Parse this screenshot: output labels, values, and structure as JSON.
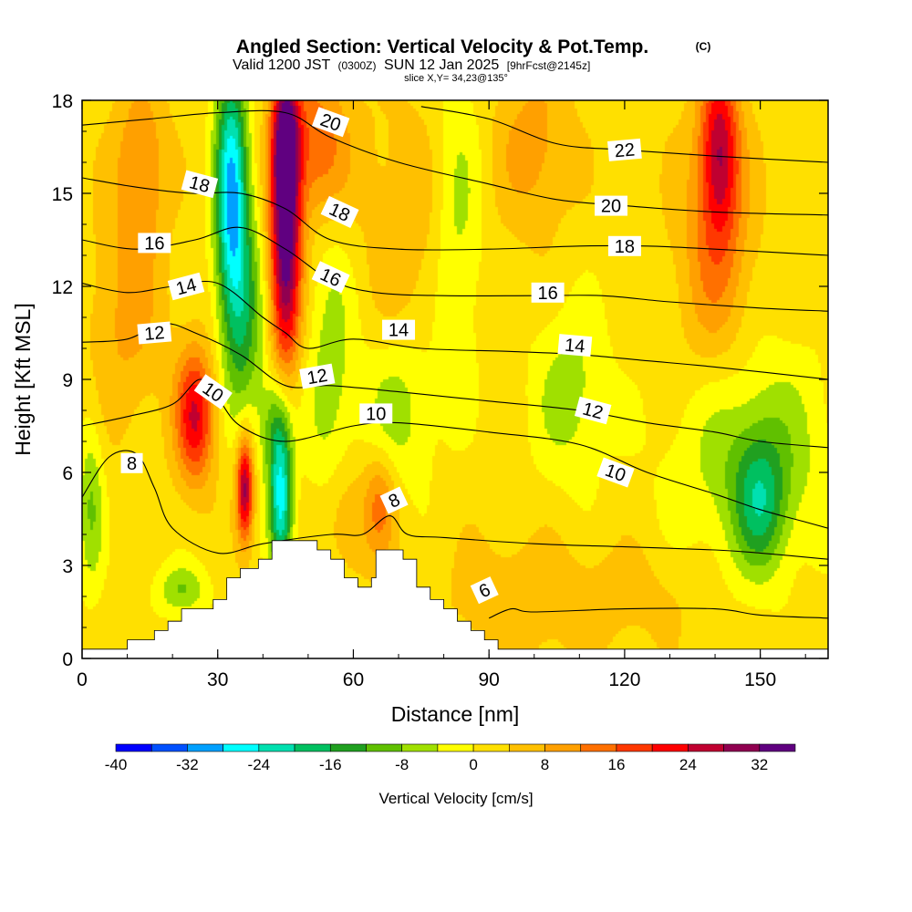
{
  "title": {
    "main": "Angled Section: Vertical Velocity & Pot.Temp.",
    "copyright": "(C)",
    "valid_prefix": "Valid 1200 JST",
    "valid_zulu": "(0300Z)",
    "valid_date": "SUN 12 Jan 2025",
    "forecast": "[9hrFcst@2145z]",
    "slice": "slice X,Y= 34,23@135°"
  },
  "chart_data": {
    "type": "heatmap",
    "xlabel": "Distance [nm]",
    "ylabel": "Height [Kft MSL]",
    "xlim": [
      0,
      165
    ],
    "ylim": [
      0,
      18
    ],
    "x_ticks": [
      0,
      30,
      60,
      90,
      120,
      150
    ],
    "y_ticks": [
      0,
      3,
      6,
      9,
      12,
      15,
      18
    ],
    "colorbar": {
      "title": "Vertical Velocity [cm/s]",
      "min": -40,
      "max": 36,
      "step": 4,
      "tick_labels": [
        -40,
        -32,
        -24,
        -16,
        -8,
        0,
        8,
        16,
        24,
        32
      ],
      "colors": [
        "#0000ff",
        "#0050ff",
        "#00a0ff",
        "#00ffff",
        "#00e0b0",
        "#00c060",
        "#20a020",
        "#60c000",
        "#a0e000",
        "#ffff00",
        "#ffe000",
        "#ffc000",
        "#ffa000",
        "#ff7000",
        "#ff3800",
        "#ff0000",
        "#c00030",
        "#900050",
        "#600080"
      ]
    },
    "vertical_velocity_features": [
      {
        "x": 33,
        "y": 15.0,
        "value": -30,
        "sx": 2.5,
        "sy": 3.0
      },
      {
        "x": 36,
        "y": 11.0,
        "value": -14,
        "sx": 3.0,
        "sy": 2.5
      },
      {
        "x": 43,
        "y": 7.5,
        "value": -14,
        "sx": 2.5,
        "sy": 1.3
      },
      {
        "x": 44,
        "y": 5.0,
        "value": -26,
        "sx": 1.8,
        "sy": 1.6
      },
      {
        "x": 45,
        "y": 13.5,
        "value": 34,
        "sx": 2.4,
        "sy": 3.0
      },
      {
        "x": 45,
        "y": 17.0,
        "value": 20,
        "sx": 2.0,
        "sy": 1.5
      },
      {
        "x": 52,
        "y": 16.5,
        "value": 14,
        "sx": 5.0,
        "sy": 1.8
      },
      {
        "x": 36,
        "y": 5.5,
        "value": 28,
        "sx": 1.3,
        "sy": 1.2
      },
      {
        "x": 25,
        "y": 7.8,
        "value": 22,
        "sx": 3.0,
        "sy": 1.5
      },
      {
        "x": 13,
        "y": 16.0,
        "value": 10,
        "sx": 4.0,
        "sy": 2.0
      },
      {
        "x": 10,
        "y": 11.0,
        "value": 7,
        "sx": 6.0,
        "sy": 2.5
      },
      {
        "x": 2,
        "y": 5.0,
        "value": -10,
        "sx": 2.0,
        "sy": 2.0
      },
      {
        "x": 22,
        "y": 2.2,
        "value": -10,
        "sx": 4.0,
        "sy": 0.6
      },
      {
        "x": 55,
        "y": 9.0,
        "value": -8,
        "sx": 4.0,
        "sy": 4.0
      },
      {
        "x": 58,
        "y": 4.5,
        "value": 8,
        "sx": 4.0,
        "sy": 1.5
      },
      {
        "x": 66,
        "y": 5.0,
        "value": 11,
        "sx": 2.5,
        "sy": 1.2
      },
      {
        "x": 70,
        "y": 8.0,
        "value": -8,
        "sx": 6.0,
        "sy": 1.8
      },
      {
        "x": 72,
        "y": 14.0,
        "value": 5,
        "sx": 8.0,
        "sy": 3.0
      },
      {
        "x": 83,
        "y": 14.0,
        "value": -8,
        "sx": 4.0,
        "sy": 3.5
      },
      {
        "x": 100,
        "y": 16.5,
        "value": 8,
        "sx": 6.0,
        "sy": 2.0
      },
      {
        "x": 108,
        "y": 8.5,
        "value": -8,
        "sx": 6.0,
        "sy": 2.0
      },
      {
        "x": 141,
        "y": 16.5,
        "value": 22,
        "sx": 3.0,
        "sy": 2.0
      },
      {
        "x": 140,
        "y": 13.0,
        "value": 10,
        "sx": 6.0,
        "sy": 3.0
      },
      {
        "x": 148,
        "y": 6.5,
        "value": -10,
        "sx": 12.0,
        "sy": 2.5
      },
      {
        "x": 150,
        "y": 5.0,
        "value": -14,
        "sx": 4.0,
        "sy": 1.5
      },
      {
        "x": 95,
        "y": 1.8,
        "value": 5,
        "sx": 10.0,
        "sy": 1.5
      },
      {
        "x": 120,
        "y": 2.0,
        "value": 4,
        "sx": 12.0,
        "sy": 1.2
      }
    ],
    "terrain": [
      [
        0,
        0.3
      ],
      [
        10,
        0.3
      ],
      [
        10,
        0.6
      ],
      [
        16,
        0.6
      ],
      [
        16,
        0.9
      ],
      [
        19,
        0.9
      ],
      [
        19,
        1.2
      ],
      [
        22,
        1.2
      ],
      [
        22,
        1.6
      ],
      [
        29,
        1.6
      ],
      [
        29,
        1.9
      ],
      [
        32,
        1.9
      ],
      [
        32,
        2.6
      ],
      [
        35,
        2.6
      ],
      [
        35,
        2.9
      ],
      [
        39,
        2.9
      ],
      [
        39,
        3.2
      ],
      [
        42,
        3.2
      ],
      [
        42,
        3.8
      ],
      [
        52,
        3.8
      ],
      [
        52,
        3.5
      ],
      [
        55,
        3.5
      ],
      [
        55,
        3.2
      ],
      [
        58,
        3.2
      ],
      [
        58,
        2.6
      ],
      [
        61,
        2.6
      ],
      [
        61,
        2.3
      ],
      [
        64,
        2.3
      ],
      [
        64,
        2.6
      ],
      [
        65,
        2.6
      ],
      [
        65,
        3.5
      ],
      [
        71,
        3.5
      ],
      [
        71,
        3.2
      ],
      [
        74,
        3.2
      ],
      [
        74,
        2.3
      ],
      [
        77,
        2.3
      ],
      [
        77,
        1.9
      ],
      [
        80,
        1.9
      ],
      [
        80,
        1.6
      ],
      [
        83,
        1.6
      ],
      [
        83,
        1.2
      ],
      [
        86,
        1.2
      ],
      [
        86,
        0.9
      ],
      [
        89,
        0.9
      ],
      [
        89,
        0.6
      ],
      [
        92,
        0.6
      ],
      [
        92,
        0.3
      ],
      [
        165,
        0.3
      ]
    ],
    "isentropes": [
      {
        "theta": 6,
        "points": [
          [
            90,
            1.3
          ],
          [
            95,
            1.6
          ],
          [
            100,
            1.5
          ],
          [
            120,
            1.6
          ],
          [
            140,
            1.6
          ],
          [
            150,
            1.4
          ],
          [
            165,
            1.3
          ]
        ],
        "label": {
          "text": "6",
          "x": 89,
          "y": 2.2,
          "angle": -25
        }
      },
      {
        "theta": 8,
        "points": [
          [
            0,
            5.2
          ],
          [
            6,
            6.5
          ],
          [
            12,
            6.6
          ],
          [
            16,
            5.5
          ],
          [
            20,
            4.2
          ],
          [
            30,
            3.4
          ],
          [
            40,
            3.7
          ],
          [
            55,
            4.0
          ],
          [
            62,
            4.0
          ],
          [
            68,
            4.6
          ],
          [
            72,
            4.0
          ],
          [
            80,
            3.9
          ],
          [
            100,
            3.7
          ],
          [
            120,
            3.6
          ],
          [
            140,
            3.5
          ],
          [
            150,
            3.4
          ],
          [
            165,
            3.2
          ]
        ],
        "label": {
          "text": "8",
          "x": 69,
          "y": 5.1,
          "angle": -25
        }
      },
      {
        "theta": 10,
        "points": [
          [
            0,
            7.5
          ],
          [
            10,
            7.8
          ],
          [
            20,
            8.2
          ],
          [
            26,
            9.0
          ],
          [
            30,
            8.4
          ],
          [
            35,
            7.5
          ],
          [
            45,
            7.0
          ],
          [
            60,
            7.5
          ],
          [
            70,
            7.6
          ],
          [
            90,
            7.3
          ],
          [
            110,
            6.9
          ],
          [
            125,
            6.0
          ],
          [
            140,
            5.3
          ],
          [
            150,
            4.8
          ],
          [
            160,
            4.4
          ],
          [
            165,
            4.2
          ]
        ],
        "label": {
          "text": "10",
          "x": 118,
          "y": 6.0,
          "angle": 20
        }
      },
      {
        "theta": 12,
        "points": [
          [
            0,
            10.2
          ],
          [
            10,
            10.3
          ],
          [
            18,
            10.8
          ],
          [
            25,
            10.5
          ],
          [
            35,
            9.8
          ],
          [
            45,
            8.8
          ],
          [
            55,
            8.8
          ],
          [
            70,
            8.6
          ],
          [
            90,
            8.3
          ],
          [
            110,
            8.0
          ],
          [
            125,
            7.6
          ],
          [
            140,
            7.3
          ],
          [
            150,
            7.0
          ],
          [
            165,
            6.8
          ]
        ],
        "label": {
          "text": "12",
          "x": 113,
          "y": 8.0,
          "angle": 15
        }
      },
      {
        "theta": 14,
        "points": [
          [
            0,
            12.1
          ],
          [
            10,
            11.8
          ],
          [
            20,
            12.0
          ],
          [
            30,
            12.1
          ],
          [
            40,
            11.0
          ],
          [
            45,
            10.5
          ],
          [
            50,
            10.0
          ],
          [
            60,
            10.3
          ],
          [
            75,
            10.0
          ],
          [
            95,
            9.9
          ],
          [
            110,
            9.8
          ],
          [
            125,
            9.6
          ],
          [
            140,
            9.4
          ],
          [
            165,
            9.0
          ]
        ],
        "label": {
          "text": "14",
          "x": 109,
          "y": 10.1,
          "angle": 5
        }
      },
      {
        "theta": 16,
        "points": [
          [
            0,
            13.5
          ],
          [
            12,
            13.2
          ],
          [
            25,
            13.5
          ],
          [
            35,
            13.9
          ],
          [
            45,
            13.2
          ],
          [
            55,
            12.2
          ],
          [
            65,
            11.8
          ],
          [
            80,
            11.7
          ],
          [
            100,
            11.7
          ],
          [
            115,
            11.7
          ],
          [
            130,
            11.5
          ],
          [
            150,
            11.3
          ],
          [
            165,
            11.2
          ]
        ],
        "label": {
          "text": "16",
          "x": 103,
          "y": 11.8,
          "angle": 0
        }
      },
      {
        "theta": 18,
        "points": [
          [
            0,
            15.5
          ],
          [
            12,
            15.2
          ],
          [
            24,
            15.0
          ],
          [
            35,
            15.0
          ],
          [
            45,
            14.5
          ],
          [
            55,
            13.5
          ],
          [
            70,
            13.2
          ],
          [
            90,
            13.2
          ],
          [
            110,
            13.3
          ],
          [
            125,
            13.3
          ],
          [
            140,
            13.2
          ],
          [
            165,
            13.0
          ]
        ],
        "label": {
          "text": "18",
          "x": 120,
          "y": 13.3,
          "angle": 0
        }
      },
      {
        "theta": 20,
        "points": [
          [
            0,
            17.2
          ],
          [
            15,
            17.4
          ],
          [
            30,
            17.6
          ],
          [
            45,
            17.6
          ],
          [
            55,
            16.8
          ],
          [
            70,
            16.0
          ],
          [
            90,
            15.3
          ],
          [
            105,
            14.8
          ],
          [
            120,
            14.6
          ],
          [
            140,
            14.4
          ],
          [
            165,
            14.3
          ]
        ],
        "label": {
          "text": "20",
          "x": 117,
          "y": 14.6,
          "angle": 0
        }
      },
      {
        "theta": 22,
        "points": [
          [
            75,
            17.8
          ],
          [
            90,
            17.4
          ],
          [
            105,
            16.6
          ],
          [
            120,
            16.4
          ],
          [
            140,
            16.2
          ],
          [
            165,
            16.0
          ]
        ],
        "label": {
          "text": "22",
          "x": 120,
          "y": 16.4,
          "angle": -5
        }
      }
    ],
    "extra_contour_labels": [
      {
        "text": "8",
        "x": 11,
        "y": 6.3,
        "angle": 0
      },
      {
        "text": "10",
        "x": 29,
        "y": 8.6,
        "angle": 35
      },
      {
        "text": "12",
        "x": 16,
        "y": 10.5,
        "angle": -5
      },
      {
        "text": "14",
        "x": 23,
        "y": 12.0,
        "angle": -15
      },
      {
        "text": "16",
        "x": 16,
        "y": 13.4,
        "angle": 0
      },
      {
        "text": "18",
        "x": 26,
        "y": 15.3,
        "angle": 15
      },
      {
        "text": "20",
        "x": 55,
        "y": 17.3,
        "angle": 20
      },
      {
        "text": "18",
        "x": 57,
        "y": 14.4,
        "angle": 25
      },
      {
        "text": "16",
        "x": 55,
        "y": 12.3,
        "angle": 25
      },
      {
        "text": "12",
        "x": 52,
        "y": 9.1,
        "angle": -10
      },
      {
        "text": "10",
        "x": 65,
        "y": 7.9,
        "angle": 0
      },
      {
        "text": "14",
        "x": 70,
        "y": 10.6,
        "angle": 0
      }
    ]
  }
}
